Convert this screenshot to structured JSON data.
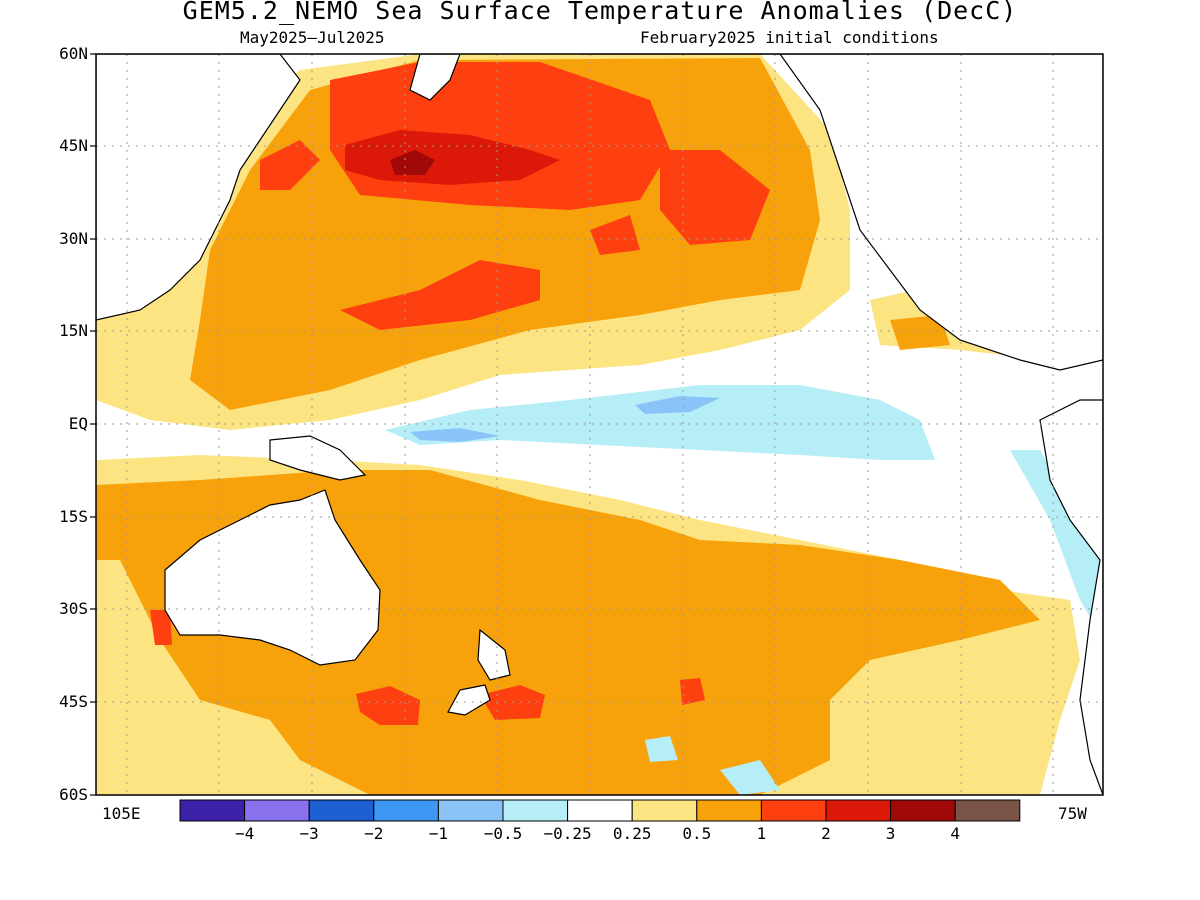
{
  "title": "GEM5.2_NEMO Sea Surface Temperature Anomalies (DecC)",
  "subtitle_period": "May2025–Jul2025",
  "subtitle_init": "February2025 initial conditions",
  "lat_labels": [
    "60N",
    "45N",
    "30N",
    "15N",
    "EQ",
    "15S",
    "30S",
    "45S",
    "60S"
  ],
  "lon_labels": {
    "left": "105E",
    "right": "75W"
  },
  "colorbar": {
    "colors": [
      "#3d21a8",
      "#8a72ef",
      "#1b5fd1",
      "#3e97f2",
      "#8ac3f8",
      "#b5eef6",
      "#ffffff",
      "#fde483",
      "#f8a20b",
      "#fe3f10",
      "#dc1908",
      "#a10808",
      "#7a5446"
    ],
    "labels": [
      "−4",
      "−3",
      "−2",
      "−1",
      "−0.5",
      "−0.25",
      "0.25",
      "0.5",
      "1",
      "2",
      "3",
      "4"
    ]
  },
  "colors": {
    "land": "#ffffff",
    "coast": "#000000",
    "grid": "#9a9a9a",
    "anom_025": "#fde483",
    "anom_05": "#f8a20b",
    "anom_1": "#fe3f10",
    "anom_2": "#dc1908",
    "anom_3": "#a10808",
    "anom_neg025": "#b5eef6",
    "anom_neg05": "#8ac3f8",
    "anom_neg1": "#3e97f2"
  }
}
